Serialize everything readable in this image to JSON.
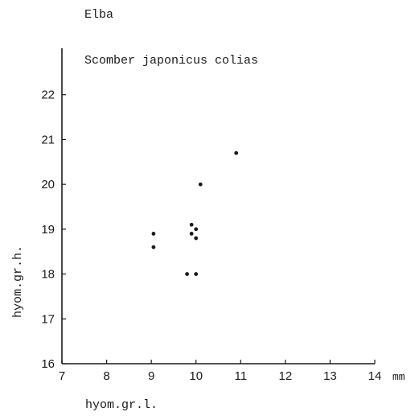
{
  "chart_data": {
    "type": "scatter",
    "location_label": "Elba",
    "species_label": "Scomber japonicus colias",
    "xlabel": "hyom.gr.l.",
    "ylabel": "hyom.gr.h.",
    "x_unit": "mm",
    "xlim": [
      7,
      14
    ],
    "ylim": [
      16,
      23
    ],
    "x_ticks": [
      7,
      8,
      9,
      10,
      11,
      12,
      13,
      14
    ],
    "y_ticks": [
      16,
      17,
      18,
      19,
      20,
      21,
      22
    ],
    "grid": false,
    "points": [
      {
        "x": 9.05,
        "y": 18.9
      },
      {
        "x": 9.05,
        "y": 18.6
      },
      {
        "x": 9.8,
        "y": 18.0
      },
      {
        "x": 10.0,
        "y": 18.0
      },
      {
        "x": 9.9,
        "y": 19.1
      },
      {
        "x": 9.9,
        "y": 18.9
      },
      {
        "x": 10.0,
        "y": 19.0
      },
      {
        "x": 10.0,
        "y": 18.8
      },
      {
        "x": 10.1,
        "y": 20.0
      },
      {
        "x": 10.9,
        "y": 20.7
      }
    ]
  }
}
